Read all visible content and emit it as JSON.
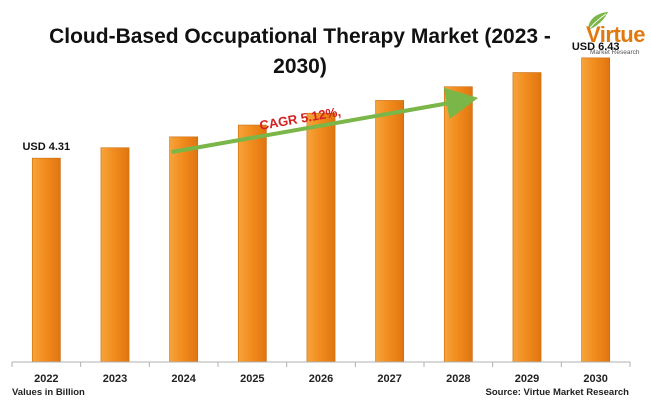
{
  "header": {
    "title_line1": "Cloud-Based Occupational Therapy Market (2023 -",
    "title_line2": "2030)"
  },
  "logo": {
    "word": "Virtue",
    "subtitle": "Market Research",
    "leaf_icon": "leaf-icon",
    "colors": {
      "word": "#e07a10",
      "leaf": "#7ab648"
    }
  },
  "footer": {
    "units": "Values in Billion",
    "source": "Source: Virtue Market Research"
  },
  "chart_data": {
    "type": "bar",
    "categories": [
      "2022",
      "2023",
      "2024",
      "2025",
      "2026",
      "2027",
      "2028",
      "2029",
      "2030"
    ],
    "values": [
      4.31,
      4.53,
      4.76,
      5.01,
      5.26,
      5.53,
      5.82,
      6.12,
      6.43
    ],
    "data_labels": [
      {
        "index": 0,
        "text": "USD 4.31"
      },
      {
        "index": 8,
        "text": "USD 6.43"
      }
    ],
    "annotation": {
      "text": "CAGR 5.12%,",
      "color": "#d42020",
      "arrow_color": "#7ab648"
    },
    "bar_color": "#f28c1e",
    "xlabel": "",
    "ylabel": "",
    "ylim": [
      0,
      7.4
    ],
    "grid": false,
    "legend": "none"
  }
}
